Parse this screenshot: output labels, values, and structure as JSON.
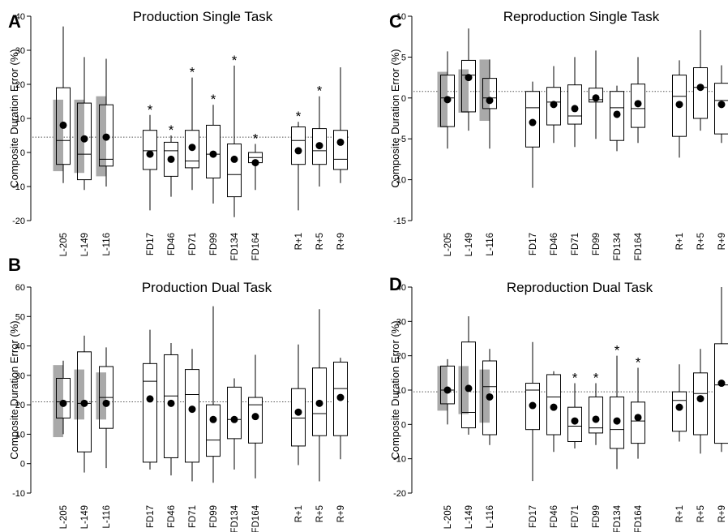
{
  "colors": {
    "box": "#000000",
    "shade": "#a9a9a9",
    "ref": "#555555"
  },
  "chart_data": [
    {
      "type": "box",
      "letter": "A",
      "title": "Production Single Task",
      "ylabel": "Composite Duration Error (%)",
      "ylim": [
        -20,
        40
      ],
      "yticks": [
        -20,
        -10,
        0,
        10,
        20,
        30,
        40
      ],
      "ref": 4.5,
      "categories": [
        "L-205",
        "L-149",
        "L-116",
        "FD17",
        "FD46",
        "FD71",
        "FD99",
        "FD134",
        "FD164",
        "R+1",
        "R+5",
        "R+9"
      ],
      "boxes": [
        {
          "wlo": -9,
          "q1": -3.5,
          "med": 3.5,
          "q3": 19,
          "whi": 37,
          "mean": 8,
          "shade": [
            -5.5,
            15.5
          ]
        },
        {
          "wlo": -11,
          "q1": -8,
          "med": -0.5,
          "q3": 14.5,
          "whi": 28,
          "mean": 4,
          "shade": [
            -6,
            15.5
          ]
        },
        {
          "wlo": -10,
          "q1": -4,
          "med": -2,
          "q3": 14,
          "whi": 27.5,
          "mean": 4.5,
          "shade": [
            -7,
            16.5
          ]
        },
        {
          "wlo": -17,
          "q1": -5,
          "med": 0.5,
          "q3": 6.5,
          "whi": 11,
          "mean": -0.5,
          "star": true
        },
        {
          "wlo": -13,
          "q1": -7,
          "med": 0.5,
          "q3": 3,
          "whi": 5,
          "mean": -2,
          "star": true
        },
        {
          "wlo": -11,
          "q1": -4.5,
          "med": -2.5,
          "q3": 6.5,
          "whi": 22,
          "mean": 1.5,
          "star": true
        },
        {
          "wlo": -15,
          "q1": -7.5,
          "med": -0.5,
          "q3": 8,
          "whi": 14,
          "mean": -0.5,
          "star": true
        },
        {
          "wlo": -19,
          "q1": -13,
          "med": -6.5,
          "q3": 2.5,
          "whi": 25.5,
          "mean": -2,
          "star": true
        },
        {
          "wlo": -11,
          "q1": -3,
          "med": -1.5,
          "q3": 0,
          "whi": 2.5,
          "mean": -3,
          "star": true
        },
        {
          "wlo": -17,
          "q1": -3.5,
          "med": 3.5,
          "q3": 7.5,
          "whi": 9,
          "mean": 0.5,
          "star": true
        },
        {
          "wlo": -10,
          "q1": -3.5,
          "med": 0.5,
          "q3": 7,
          "whi": 16.5,
          "mean": 2,
          "star": true
        },
        {
          "wlo": -9,
          "q1": -5,
          "med": -2,
          "q3": 6.5,
          "whi": 25,
          "mean": 3
        }
      ]
    },
    {
      "type": "box",
      "letter": "C",
      "title": "Reproduction Single Task",
      "ylabel": "Composite Duration Error (%)",
      "ylim": [
        -15,
        10
      ],
      "yticks": [
        -15,
        -10,
        -5,
        0,
        5,
        10
      ],
      "ref": 0.8,
      "categories": [
        "L-205",
        "L-149",
        "L-116",
        "FD17",
        "FD46",
        "FD71",
        "FD99",
        "FD134",
        "FD164",
        "R+1",
        "R+5",
        "R+9"
      ],
      "boxes": [
        {
          "wlo": -6.2,
          "q1": -3.5,
          "med": 0,
          "q3": 2.8,
          "whi": 5.7,
          "mean": -0.2,
          "shade": [
            -3.6,
            3.2
          ]
        },
        {
          "wlo": -4,
          "q1": -1.7,
          "med": 2.8,
          "q3": 4.6,
          "whi": 8.5,
          "mean": 2.5,
          "shade": [
            -1.8,
            3.5
          ]
        },
        {
          "wlo": -6.2,
          "q1": -1.3,
          "med": 0,
          "q3": 2.4,
          "whi": 4.7,
          "mean": -0.3,
          "shade": [
            -2.8,
            4.7
          ]
        },
        {
          "wlo": -11,
          "q1": -6,
          "med": -1.2,
          "q3": 0.8,
          "whi": 2,
          "mean": -3
        },
        {
          "wlo": -5.5,
          "q1": -3.3,
          "med": -0.5,
          "q3": 1.3,
          "whi": 3.9,
          "mean": -0.8
        },
        {
          "wlo": -6,
          "q1": -3.2,
          "med": -2.2,
          "q3": 1.6,
          "whi": 5,
          "mean": -1.3
        },
        {
          "wlo": -5,
          "q1": -0.5,
          "med": -0.2,
          "q3": 1.2,
          "whi": 5.8,
          "mean": 0
        },
        {
          "wlo": -6.5,
          "q1": -5.2,
          "med": -1.2,
          "q3": 0.8,
          "whi": 1.5,
          "mean": -2
        },
        {
          "wlo": -5.5,
          "q1": -3.6,
          "med": -1.3,
          "q3": 1.7,
          "whi": 5,
          "mean": -0.7
        },
        {
          "wlo": -7.3,
          "q1": -4.7,
          "med": 0.2,
          "q3": 2.8,
          "whi": 4.6,
          "mean": -0.8
        },
        {
          "wlo": -4,
          "q1": -2.5,
          "med": 1.3,
          "q3": 3.7,
          "whi": 8.3,
          "mean": 1.3
        },
        {
          "wlo": -5.5,
          "q1": -4.4,
          "med": -0.3,
          "q3": 1.8,
          "whi": 4,
          "mean": -0.8
        }
      ]
    },
    {
      "type": "box",
      "letter": "B",
      "title": "Production Dual Task",
      "ylabel": "Composite Duration Error (%)",
      "ylim": [
        -10,
        60
      ],
      "yticks": [
        -10,
        0,
        10,
        20,
        30,
        40,
        50,
        60
      ],
      "ref": 21,
      "categories": [
        "L-205",
        "L-149",
        "L-116",
        "FD17",
        "FD46",
        "FD71",
        "FD99",
        "FD134",
        "FD164",
        "R+1",
        "R+5",
        "R+9"
      ],
      "boxes": [
        {
          "wlo": 10,
          "q1": 15.5,
          "med": 21,
          "q3": 29,
          "whi": 35,
          "mean": 20.5,
          "shade": [
            9,
            33.5
          ]
        },
        {
          "wlo": -3,
          "q1": 4,
          "med": 20.5,
          "q3": 38,
          "whi": 43.5,
          "mean": 20.5,
          "shade": [
            15,
            32
          ]
        },
        {
          "wlo": -1.5,
          "q1": 12,
          "med": 22.5,
          "q3": 33,
          "whi": 39.5,
          "mean": 20.5,
          "shade": [
            15,
            31
          ]
        },
        {
          "wlo": -2,
          "q1": 0.5,
          "med": 28,
          "q3": 34,
          "whi": 45.5,
          "mean": 22
        },
        {
          "wlo": -4,
          "q1": 2,
          "med": 23,
          "q3": 37,
          "whi": 41,
          "mean": 20.5
        },
        {
          "wlo": -6,
          "q1": 0.5,
          "med": 23.5,
          "q3": 32,
          "whi": 39,
          "mean": 18.5
        },
        {
          "wlo": -6.5,
          "q1": 2.5,
          "med": 8,
          "q3": 20,
          "whi": 53.5,
          "mean": 15
        },
        {
          "wlo": -2,
          "q1": 8.5,
          "med": 15,
          "q3": 26,
          "whi": 29,
          "mean": 15
        },
        {
          "wlo": -5,
          "q1": 7,
          "med": 20,
          "q3": 22.5,
          "whi": 37,
          "mean": 16
        },
        {
          "wlo": -0.5,
          "q1": 6,
          "med": 15.5,
          "q3": 25.5,
          "whi": 40.5,
          "mean": 17.5
        },
        {
          "wlo": -6,
          "q1": 9.5,
          "med": 17,
          "q3": 32.5,
          "whi": 52.5,
          "mean": 20.5
        },
        {
          "wlo": 1.5,
          "q1": 9.5,
          "med": 25.5,
          "q3": 34.5,
          "whi": 36,
          "mean": 22.5
        }
      ]
    },
    {
      "type": "box",
      "letter": "D",
      "title": "Reproduction Dual Task",
      "ylabel": "Composite Duration Error (%)",
      "ylim": [
        -20,
        40
      ],
      "yticks": [
        -20,
        -10,
        0,
        10,
        20,
        30,
        40
      ],
      "ref": 9.5,
      "categories": [
        "L-205",
        "L-149",
        "L-116",
        "FD17",
        "FD46",
        "FD71",
        "FD99",
        "FD134",
        "FD164",
        "R+1",
        "R+5",
        "R+9"
      ],
      "boxes": [
        {
          "wlo": 0,
          "q1": 6,
          "med": 10,
          "q3": 17,
          "whi": 19,
          "mean": 10,
          "shade": [
            4,
            17
          ]
        },
        {
          "wlo": -3,
          "q1": -1,
          "med": 3.5,
          "q3": 24,
          "whi": 31.5,
          "mean": 10.5,
          "shade": [
            3,
            17
          ]
        },
        {
          "wlo": -6,
          "q1": -3,
          "med": 11,
          "q3": 18.5,
          "whi": 22,
          "mean": 8,
          "shade": [
            0.5,
            16
          ]
        },
        {
          "wlo": -16.5,
          "q1": -1.5,
          "med": 10,
          "q3": 12,
          "whi": 24,
          "mean": 5.5
        },
        {
          "wlo": -8,
          "q1": -3,
          "med": 8,
          "q3": 14.5,
          "whi": 15.5,
          "mean": 5
        },
        {
          "wlo": -7,
          "q1": -5,
          "med": -0.5,
          "q3": 5,
          "whi": 12,
          "mean": 1,
          "star": true
        },
        {
          "wlo": -6,
          "q1": -2.5,
          "med": -1,
          "q3": 8,
          "whi": 12,
          "mean": 1.5,
          "star": true
        },
        {
          "wlo": -13,
          "q1": -7,
          "med": -1.5,
          "q3": 8,
          "whi": 20,
          "mean": 1,
          "star": true
        },
        {
          "wlo": -10,
          "q1": -5.5,
          "med": 1,
          "q3": 6.5,
          "whi": 16.5,
          "mean": 2,
          "star": true
        },
        {
          "wlo": -5,
          "q1": -2,
          "med": 7,
          "q3": 9.5,
          "whi": 17.5,
          "mean": 5
        },
        {
          "wlo": -8.5,
          "q1": -3,
          "med": 9,
          "q3": 15,
          "whi": 22,
          "mean": 7.5
        },
        {
          "wlo": -8,
          "q1": -5.5,
          "med": 11.5,
          "q3": 23.5,
          "whi": 40,
          "mean": 12
        }
      ]
    }
  ]
}
